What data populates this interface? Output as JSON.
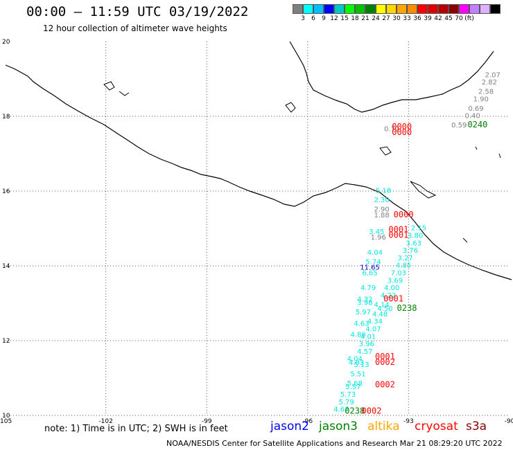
{
  "title": "00:00 – 11:59 UTC 03/19/2022",
  "subtitle": "12 hour collection of altimeter wave heights",
  "legend": {
    "colors": [
      "#808080",
      "#00ffff",
      "#00bfff",
      "#0000ff",
      "#00c8c8",
      "#00ff00",
      "#00c000",
      "#008000",
      "#ffff00",
      "#ffd700",
      "#ffa500",
      "#ff8c00",
      "#ff0000",
      "#dc0000",
      "#b40000",
      "#8b0000",
      "#ff00ff",
      "#c080ff",
      "#e0b0ff",
      "#000000"
    ],
    "labels": [
      "3",
      "6",
      "9",
      "12",
      "15",
      "18",
      "21",
      "24",
      "27",
      "30",
      "33",
      "36",
      "39",
      "42",
      "45",
      "70"
    ],
    "unit": "(ft)"
  },
  "map": {
    "lon_min": -105,
    "lon_max": -90,
    "lat_min": 10,
    "lat_max": 20,
    "x_ticks": [
      "-105",
      "-102",
      "-99",
      "-96",
      "-93",
      "-90"
    ],
    "y_ticks": [
      "20",
      "18",
      "16",
      "14",
      "12",
      "10"
    ]
  },
  "observations": [
    {
      "v": "2.07",
      "c": "#808080",
      "lon": -90.5,
      "lat": 19.05
    },
    {
      "v": "2.82",
      "c": "#808080",
      "lon": -90.6,
      "lat": 18.85
    },
    {
      "v": "2.58",
      "c": "#808080",
      "lon": -90.7,
      "lat": 18.6
    },
    {
      "v": "1.90",
      "c": "#808080",
      "lon": -90.85,
      "lat": 18.4
    },
    {
      "v": "0.69",
      "c": "#808080",
      "lon": -91.0,
      "lat": 18.15
    },
    {
      "v": "0.40",
      "c": "#808080",
      "lon": -91.1,
      "lat": 17.95
    },
    {
      "v": "0.59",
      "c": "#808080",
      "lon": -91.5,
      "lat": 17.7
    },
    {
      "v": "0.72",
      "c": "#808080",
      "lon": -93.5,
      "lat": 17.6
    },
    {
      "v": "5.18",
      "c": "#00e5e5",
      "lon": -93.75,
      "lat": 15.95
    },
    {
      "v": "2.30",
      "c": "#00e5e5",
      "lon": -93.8,
      "lat": 15.7
    },
    {
      "v": "2.90",
      "c": "#808080",
      "lon": -93.8,
      "lat": 15.45
    },
    {
      "v": "1.88",
      "c": "#808080",
      "lon": -93.8,
      "lat": 15.3
    },
    {
      "v": "3.45",
      "c": "#00e5e5",
      "lon": -93.95,
      "lat": 14.85
    },
    {
      "v": "1.96",
      "c": "#808080",
      "lon": -93.9,
      "lat": 14.7
    },
    {
      "v": "2.15",
      "c": "#00e5e5",
      "lon": -92.7,
      "lat": 14.95
    },
    {
      "v": "3.80",
      "c": "#00e5e5",
      "lon": -92.8,
      "lat": 14.75
    },
    {
      "v": "3.63",
      "c": "#00e5e5",
      "lon": -92.85,
      "lat": 14.55
    },
    {
      "v": "3.76",
      "c": "#00e5e5",
      "lon": -92.95,
      "lat": 14.35
    },
    {
      "v": "4.04",
      "c": "#00e5e5",
      "lon": -94.0,
      "lat": 14.3
    },
    {
      "v": "3.27",
      "c": "#00e5e5",
      "lon": -93.1,
      "lat": 14.15
    },
    {
      "v": "5.74",
      "c": "#00e5e5",
      "lon": -94.05,
      "lat": 14.05
    },
    {
      "v": "11.65",
      "c": "#0000cc",
      "lon": -94.15,
      "lat": 13.9
    },
    {
      "v": "4.85",
      "c": "#00e5e5",
      "lon": -93.15,
      "lat": 13.95
    },
    {
      "v": "6.65",
      "c": "#00e5e5",
      "lon": -94.15,
      "lat": 13.75
    },
    {
      "v": "7.03",
      "c": "#00e5e5",
      "lon": -93.3,
      "lat": 13.75
    },
    {
      "v": "3.69",
      "c": "#00e5e5",
      "lon": -93.4,
      "lat": 13.55
    },
    {
      "v": "4.79",
      "c": "#00e5e5",
      "lon": -94.2,
      "lat": 13.35
    },
    {
      "v": "4.00",
      "c": "#00e5e5",
      "lon": -93.5,
      "lat": 13.35
    },
    {
      "v": "4.22",
      "c": "#00e5e5",
      "lon": -93.6,
      "lat": 13.15
    },
    {
      "v": "4.32",
      "c": "#00e5e5",
      "lon": -94.3,
      "lat": 13.05
    },
    {
      "v": "3.98",
      "c": "#00e5e5",
      "lon": -94.3,
      "lat": 12.95
    },
    {
      "v": "4.14",
      "c": "#00e5e5",
      "lon": -93.8,
      "lat": 12.9
    },
    {
      "v": "4.50",
      "c": "#00e5e5",
      "lon": -93.7,
      "lat": 12.8
    },
    {
      "v": "5.97",
      "c": "#00e5e5",
      "lon": -94.35,
      "lat": 12.7
    },
    {
      "v": "4.48",
      "c": "#00e5e5",
      "lon": -93.85,
      "lat": 12.65
    },
    {
      "v": "4.63",
      "c": "#00e5e5",
      "lon": -94.4,
      "lat": 12.4
    },
    {
      "v": "4.34",
      "c": "#00e5e5",
      "lon": -94.0,
      "lat": 12.45
    },
    {
      "v": "4.07",
      "c": "#00e5e5",
      "lon": -94.05,
      "lat": 12.25
    },
    {
      "v": "4.88",
      "c": "#00e5e5",
      "lon": -94.5,
      "lat": 12.1
    },
    {
      "v": "4.01",
      "c": "#00e5e5",
      "lon": -94.2,
      "lat": 12.05
    },
    {
      "v": "3.96",
      "c": "#00e5e5",
      "lon": -94.25,
      "lat": 11.85
    },
    {
      "v": "4.57",
      "c": "#00e5e5",
      "lon": -94.3,
      "lat": 11.65
    },
    {
      "v": "4.04",
      "c": "#00e5e5",
      "lon": -94.6,
      "lat": 11.45
    },
    {
      "v": "4.83",
      "c": "#00e5e5",
      "lon": -94.55,
      "lat": 11.35
    },
    {
      "v": "5.13",
      "c": "#00e5e5",
      "lon": -94.4,
      "lat": 11.3
    },
    {
      "v": "5.51",
      "c": "#00e5e5",
      "lon": -94.5,
      "lat": 11.05
    },
    {
      "v": "5.68",
      "c": "#00e5e5",
      "lon": -94.6,
      "lat": 10.8
    },
    {
      "v": "5.57",
      "c": "#00e5e5",
      "lon": -94.65,
      "lat": 10.7
    },
    {
      "v": "5.73",
      "c": "#00e5e5",
      "lon": -94.8,
      "lat": 10.5
    },
    {
      "v": "5.79",
      "c": "#00e5e5",
      "lon": -94.85,
      "lat": 10.3
    },
    {
      "v": "4.67",
      "c": "#00e5e5",
      "lon": -95.0,
      "lat": 10.1
    }
  ],
  "passes": [
    {
      "v": "0000",
      "c": "#ff0000",
      "lon": -93.2,
      "lat": 17.65
    },
    {
      "v": "0000",
      "c": "#ff0000",
      "lon": -93.2,
      "lat": 17.5
    },
    {
      "v": "0240",
      "c": "#008000",
      "lon": -90.95,
      "lat": 17.7
    },
    {
      "v": "0000",
      "c": "#ff0000",
      "lon": -93.15,
      "lat": 15.3
    },
    {
      "v": "0001",
      "c": "#ff0000",
      "lon": -93.3,
      "lat": 14.9
    },
    {
      "v": "0001",
      "c": "#ff0000",
      "lon": -93.3,
      "lat": 14.75
    },
    {
      "v": "0001",
      "c": "#ff0000",
      "lon": -93.45,
      "lat": 13.05
    },
    {
      "v": "0238",
      "c": "#008000",
      "lon": -93.05,
      "lat": 12.8
    },
    {
      "v": "0001",
      "c": "#ff0000",
      "lon": -93.7,
      "lat": 11.5
    },
    {
      "v": "0002",
      "c": "#ff0000",
      "lon": -93.7,
      "lat": 11.35
    },
    {
      "v": "0002",
      "c": "#ff0000",
      "lon": -93.7,
      "lat": 10.75
    },
    {
      "v": "0238",
      "c": "#008000",
      "lon": -94.6,
      "lat": 10.05
    },
    {
      "v": "0002",
      "c": "#ff0000",
      "lon": -94.1,
      "lat": 10.05
    }
  ],
  "note": "note:  1) Time is in UTC;  2) SWH is in feet",
  "satellites": [
    {
      "name": "jason2",
      "color": "#0000ff"
    },
    {
      "name": "jason3",
      "color": "#008000"
    },
    {
      "name": "altika",
      "color": "#ffa500"
    },
    {
      "name": "cryosat",
      "color": "#ff0000"
    },
    {
      "name": "s3a",
      "color": "#8b0000"
    }
  ],
  "credit": "NOAA/NESDIS Center for Satellite Applications and Research    Mar 21 08:29:20 UTC 2022"
}
